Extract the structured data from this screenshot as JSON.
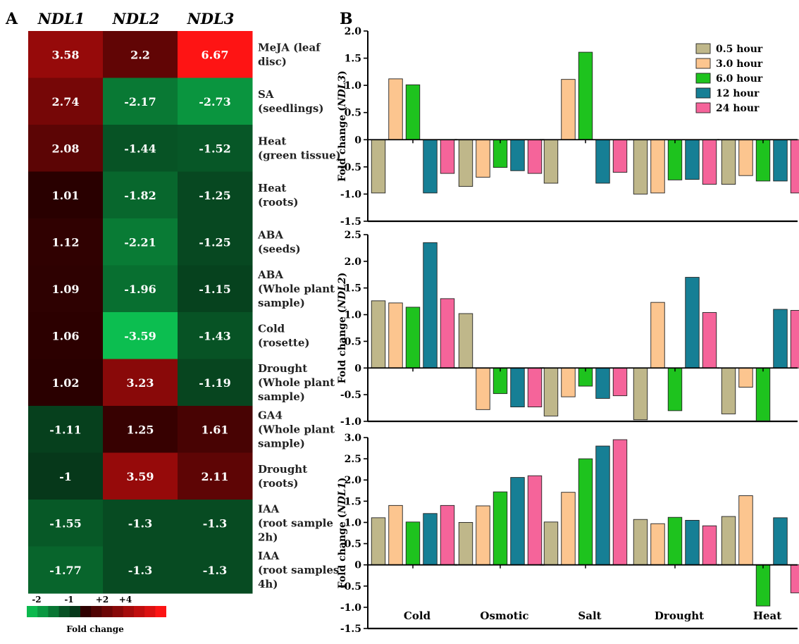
{
  "panel_a_letter": "A",
  "panel_b_letter": "B",
  "chart_data": [
    {
      "type": "heatmap",
      "columns": [
        "NDL1",
        "NDL2",
        "NDL3"
      ],
      "rows": [
        {
          "label": [
            "MeJA (leaf",
            "disc)"
          ],
          "values": [
            3.58,
            2.2,
            6.67
          ]
        },
        {
          "label": [
            "SA",
            "(seedlings)"
          ],
          "values": [
            2.74,
            -2.17,
            -2.73
          ]
        },
        {
          "label": [
            "Heat",
            "(green tissue)"
          ],
          "values": [
            2.08,
            -1.44,
            -1.52
          ]
        },
        {
          "label": [
            "Heat",
            "(roots)"
          ],
          "values": [
            1.01,
            -1.82,
            -1.25
          ]
        },
        {
          "label": [
            "ABA",
            "(seeds)"
          ],
          "values": [
            1.12,
            -2.21,
            -1.25
          ]
        },
        {
          "label": [
            "ABA",
            "(Whole plant",
            "sample)"
          ],
          "values": [
            1.09,
            -1.96,
            -1.15
          ]
        },
        {
          "label": [
            "Cold",
            "(rosette)"
          ],
          "values": [
            1.06,
            -3.59,
            -1.43
          ]
        },
        {
          "label": [
            "Drought",
            "(Whole plant",
            "sample)"
          ],
          "values": [
            1.02,
            3.23,
            -1.19
          ]
        },
        {
          "label": [
            "GA4",
            "(Whole plant",
            "sample)"
          ],
          "values": [
            -1.11,
            1.25,
            1.61
          ]
        },
        {
          "label": [
            "Drought",
            "(roots)"
          ],
          "values": [
            -1,
            3.59,
            2.11
          ]
        },
        {
          "label": [
            "IAA",
            "(root sample",
            "2h)"
          ],
          "values": [
            -1.55,
            -1.3,
            -1.3
          ]
        },
        {
          "label": [
            "IAA",
            "(root samples",
            "4h)"
          ],
          "values": [
            -1.77,
            -1.3,
            -1.3
          ]
        }
      ],
      "scale_labels": [
        "-2",
        "-1",
        "+2",
        "+4"
      ],
      "scale_title": "Fold change"
    },
    {
      "type": "bar",
      "gene": "NDL3",
      "ylabel_prefix": "Fold change (",
      "ylabel_gene": "NDL3",
      "ylabel_suffix": ")",
      "ylim": [
        -1.5,
        2.0
      ],
      "yticks": [
        "-1.5",
        "-1.0",
        "-0.5",
        "0",
        "0.5",
        "1.0",
        "1.5",
        "2.0"
      ],
      "categories": [
        "Cold",
        "Osmotic",
        "Salt",
        "Drought",
        "Heat"
      ],
      "series": [
        {
          "name": "0.5 hour",
          "color": "#bfb78a",
          "values": [
            -0.98,
            -0.86,
            -0.8,
            -1.0,
            -0.82
          ]
        },
        {
          "name": "3.0 hour",
          "color": "#fcc58f",
          "values": [
            1.12,
            -0.69,
            1.11,
            -0.98,
            -0.66
          ]
        },
        {
          "name": "6.0 hour",
          "color": "#1ec31e",
          "values": [
            1.01,
            -0.51,
            1.61,
            -0.74,
            -0.76
          ]
        },
        {
          "name": "12 hour",
          "color": "#167f95",
          "values": [
            -0.98,
            -0.57,
            -0.8,
            -0.73,
            -0.76
          ]
        },
        {
          "name": "24 hour",
          "color": "#f5649a",
          "values": [
            -0.62,
            -0.62,
            -0.6,
            -0.82,
            -0.98
          ]
        }
      ]
    },
    {
      "type": "bar",
      "gene": "NDL2",
      "ylabel_prefix": "Fold change (",
      "ylabel_gene": "NDL2",
      "ylabel_suffix": ")",
      "ylim": [
        -1.0,
        2.5
      ],
      "yticks": [
        "-1.0",
        "-0.5",
        "0",
        "0.5",
        "1.0",
        "1.5",
        "2.0",
        "2.5"
      ],
      "categories": [
        "Cold",
        "Osmotic",
        "Salt",
        "Drought",
        "Heat"
      ],
      "series": [
        {
          "name": "0.5 hour",
          "color": "#bfb78a",
          "values": [
            1.26,
            1.02,
            -0.9,
            -0.97,
            -0.86
          ]
        },
        {
          "name": "3.0 hour",
          "color": "#fcc58f",
          "values": [
            1.22,
            -0.78,
            -0.54,
            1.23,
            -0.36
          ]
        },
        {
          "name": "6.0 hour",
          "color": "#1ec31e",
          "values": [
            1.14,
            -0.48,
            -0.34,
            -0.8,
            -0.99
          ]
        },
        {
          "name": "12 hour",
          "color": "#167f95",
          "values": [
            2.35,
            -0.73,
            -0.57,
            1.7,
            1.1
          ]
        },
        {
          "name": "24 hour",
          "color": "#f5649a",
          "values": [
            1.3,
            -0.73,
            -0.52,
            1.04,
            1.08
          ]
        }
      ]
    },
    {
      "type": "bar",
      "gene": "NDL1",
      "ylabel_prefix": "Fold change (",
      "ylabel_gene": "NDL1",
      "ylabel_suffix": ")",
      "ylim": [
        -1.5,
        3.0
      ],
      "yticks": [
        "-1.5",
        "-1.0",
        "-0.5",
        "0",
        "0.5",
        "1.0",
        "1.5",
        "2.0",
        "2.5",
        "3.0"
      ],
      "categories": [
        "Cold",
        "Osmotic",
        "Salt",
        "Drought",
        "Heat"
      ],
      "series": [
        {
          "name": "0.5 hour",
          "color": "#bfb78a",
          "values": [
            1.11,
            1.0,
            1.01,
            1.07,
            1.14
          ]
        },
        {
          "name": "3.0 hour",
          "color": "#fcc58f",
          "values": [
            1.4,
            1.39,
            1.71,
            0.97,
            1.63
          ]
        },
        {
          "name": "6.0 hour",
          "color": "#1ec31e",
          "values": [
            1.01,
            1.72,
            2.5,
            1.12,
            -0.97
          ]
        },
        {
          "name": "12 hour",
          "color": "#167f95",
          "values": [
            1.21,
            2.06,
            2.8,
            1.05,
            1.11
          ]
        },
        {
          "name": "24 hour",
          "color": "#f5649a",
          "values": [
            1.4,
            2.1,
            2.95,
            0.92,
            -0.66
          ]
        }
      ]
    }
  ]
}
